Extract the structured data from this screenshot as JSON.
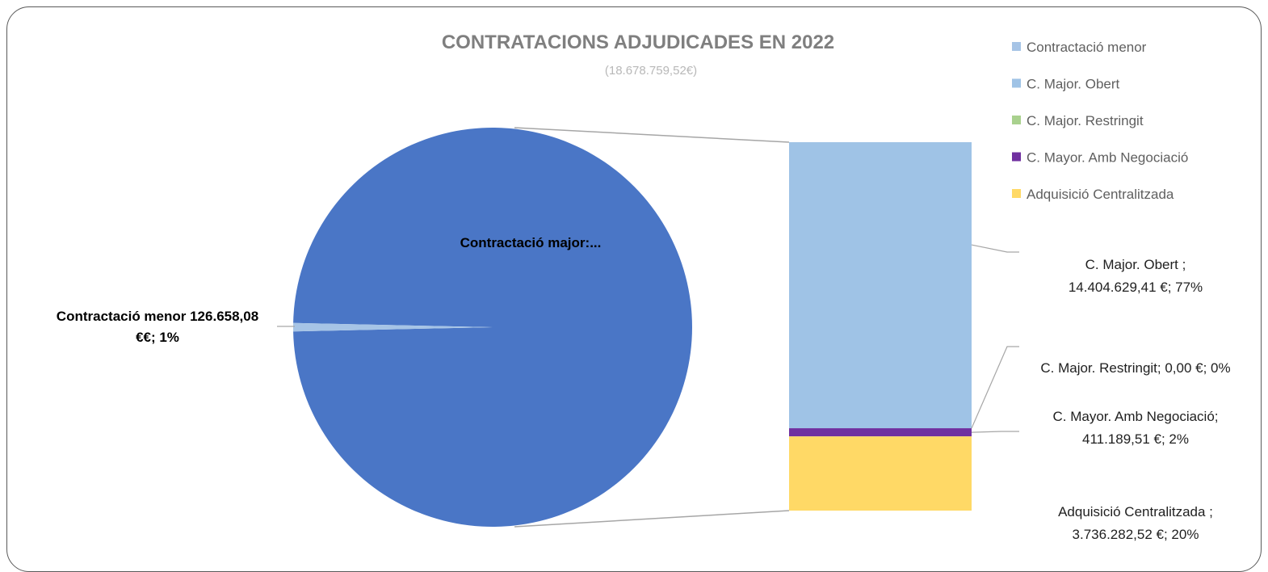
{
  "chart_data": {
    "type": "pie",
    "subtype": "bar-of-pie",
    "title": "CONTRATACIONS ADJUDICADES EN 2022",
    "subtitle": "(18.678.759,52€)",
    "pie": {
      "slices": [
        {
          "name": "Contractació major",
          "value": 18552101.44,
          "color": "#4a76c6",
          "label": "Contractació major:..."
        },
        {
          "name": "Contractació menor",
          "value": 126658.08,
          "color": "#a6c4e6",
          "label_lines": [
            "Contractació menor  126.658,08",
            "€€; 1%"
          ]
        }
      ]
    },
    "bar": {
      "segments": [
        {
          "name": "C. Major.  Obert",
          "value": 14404629.41,
          "percent": 77,
          "color": "#9fc3e6",
          "label_lines": [
            "C. Major.  Obert ;",
            "14.404.629,41 €; 77%"
          ]
        },
        {
          "name": "C. Major. Restringit",
          "value": 0.0,
          "percent": 0,
          "color": "#a9d18e",
          "label_lines": [
            "C. Major. Restringit; 0,00 €; 0%"
          ]
        },
        {
          "name": "C. Mayor. Amb Negociació",
          "value": 411189.51,
          "percent": 2,
          "color": "#7030a0",
          "label_lines": [
            "C. Mayor. Amb Negociació;",
            "411.189,51 €; 2%"
          ]
        },
        {
          "name": "Adquisició Centralitzada",
          "value": 3736282.52,
          "percent": 20,
          "color": "#ffd966",
          "label_lines": [
            "Adquisició Centralitzada ;",
            "3.736.282,52 €; 20%"
          ]
        }
      ]
    },
    "legend": {
      "placement": "top-right",
      "entries": [
        {
          "label": "Contractació menor",
          "color": "#a6c4e6"
        },
        {
          "label": "C. Major.  Obert",
          "color": "#9fc3e6"
        },
        {
          "label": "C. Major. Restringit",
          "color": "#a9d18e"
        },
        {
          "label": "C. Mayor. Amb Negociació",
          "color": "#7030a0"
        },
        {
          "label": "Adquisició Centralitzada",
          "color": "#ffd966"
        }
      ]
    }
  }
}
